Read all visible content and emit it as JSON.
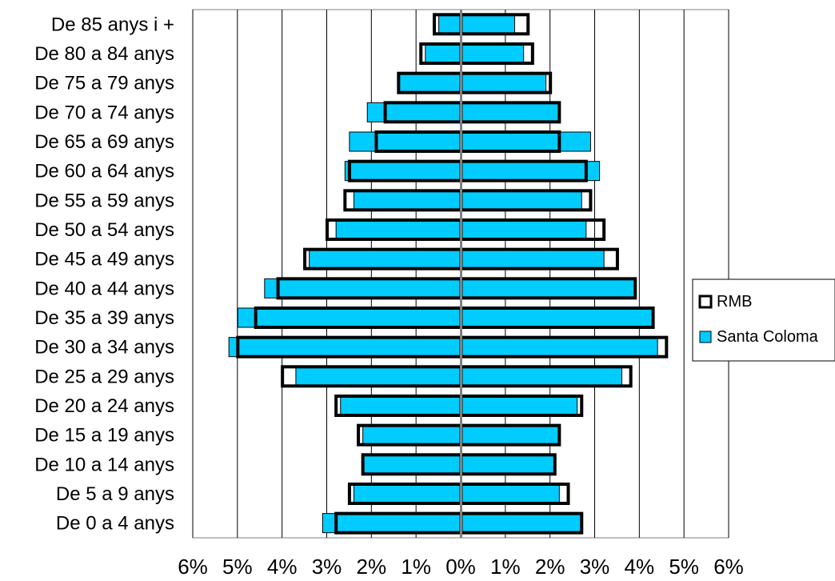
{
  "chart_data": {
    "type": "bar",
    "orientation": "horizontal-population-pyramid",
    "categories": [
      "De 0 a 4 anys",
      "De 5 a 9 anys",
      "De 10 a 14 anys",
      "De 15 a 19 anys",
      "De 20 a 24 anys",
      "De 25 a 29 anys",
      "De 30 a 34 anys",
      "De 35 a 39 anys",
      "De 40 a 44 anys",
      "De 45 a 49 anys",
      "De 50 a 54 anys",
      "De 55 a 59 anys",
      "De 60 a 64 anys",
      "De 65 a 69 anys",
      "De 70 a 74 anys",
      "De 75 a 79 anys",
      "De 80 a 84 anys",
      "De 85 anys i +"
    ],
    "series": [
      {
        "name": "RMB",
        "color": "#ffffff",
        "border": "#000000",
        "left_values": [
          2.8,
          2.5,
          2.2,
          2.3,
          2.8,
          4.0,
          5.0,
          4.6,
          4.1,
          3.5,
          3.0,
          2.6,
          2.5,
          1.9,
          1.7,
          1.4,
          0.9,
          0.6
        ],
        "right_values": [
          2.7,
          2.4,
          2.1,
          2.2,
          2.7,
          3.8,
          4.6,
          4.3,
          3.9,
          3.5,
          3.2,
          2.9,
          2.8,
          2.2,
          2.2,
          2.0,
          1.6,
          1.5
        ]
      },
      {
        "name": "Santa Coloma",
        "color": "#00ccff",
        "border": "#000000",
        "left_values": [
          3.1,
          2.4,
          2.2,
          2.2,
          2.7,
          3.7,
          5.2,
          5.0,
          4.4,
          3.4,
          2.8,
          2.4,
          2.6,
          2.5,
          2.1,
          1.4,
          0.8,
          0.5
        ],
        "right_values": [
          2.7,
          2.2,
          2.1,
          2.2,
          2.6,
          3.6,
          4.4,
          4.3,
          3.9,
          3.2,
          2.8,
          2.7,
          3.1,
          2.9,
          2.2,
          1.9,
          1.4,
          1.2
        ]
      }
    ],
    "x_ticks": [
      "6%",
      "5%",
      "4%",
      "3%",
      "2%",
      "1%",
      "0%",
      "1%",
      "2%",
      "3%",
      "4%",
      "5%",
      "6%"
    ],
    "xlim": [
      -6,
      6
    ],
    "grid": "vertical",
    "legend_position": "right",
    "title": "",
    "xlabel": "",
    "ylabel": ""
  }
}
